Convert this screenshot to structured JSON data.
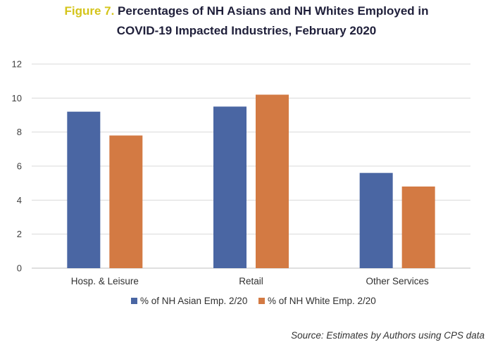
{
  "title": {
    "figure_label": "Figure 7.",
    "line1": " Percentages of NH Asians and NH Whites Employed in",
    "line2": "COVID-19 Impacted Industries, February 2020"
  },
  "source": "Source: Estimates by Authors using CPS data",
  "chart_data": {
    "type": "bar",
    "title": "Percentages of NH Asians and NH Whites Employed in COVID-19 Impacted Industries, February 2020",
    "xlabel": "",
    "ylabel": "",
    "categories": [
      "Hosp. & Leisure",
      "Retail",
      "Other Services"
    ],
    "series": [
      {
        "name": "% of NH Asian Emp. 2/20",
        "color": "#4a66a3",
        "values": [
          9.2,
          9.5,
          5.6
        ]
      },
      {
        "name": "% of NH White Emp. 2/20",
        "color": "#d37a43",
        "values": [
          7.8,
          10.2,
          4.8
        ]
      }
    ],
    "ylim": [
      0,
      12
    ],
    "yticks": [
      0,
      2,
      4,
      6,
      8,
      10,
      12
    ],
    "grid": true,
    "legend_position": "bottom"
  }
}
